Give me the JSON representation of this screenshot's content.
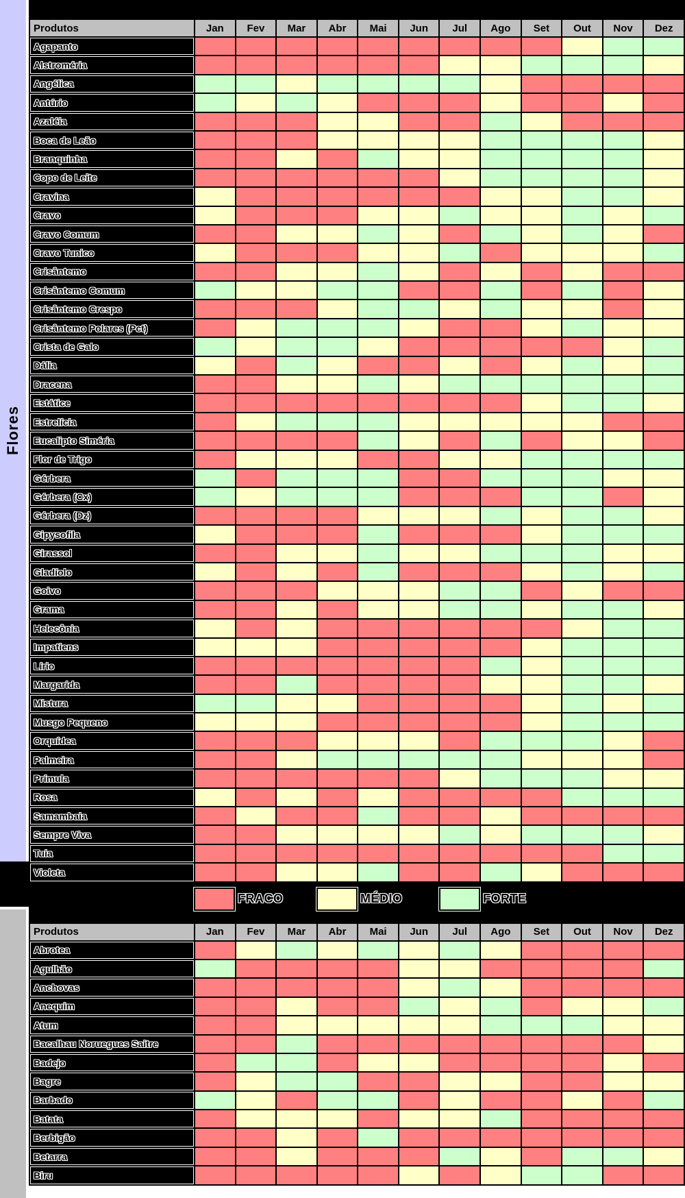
{
  "sections": {
    "first_label": "Flores",
    "second_label": ""
  },
  "ui": {
    "row_header": "Produtos",
    "legend": {
      "items": [
        {
          "code": "R",
          "label": "FRACO",
          "color": "#FF8080"
        },
        {
          "code": "Y",
          "label": "MÉDIO",
          "color": "#FFFFC8"
        },
        {
          "code": "G",
          "label": "FORTE",
          "color": "#CCFFCC"
        }
      ]
    },
    "colors": {
      "weak": "#FF8080",
      "medium": "#FFFFC8",
      "strong": "#CCFFCC",
      "header_bg": "#C0C0C0",
      "section_bar": "#CCCCFF",
      "label_bg": "#000000"
    }
  },
  "chart_data": [
    {
      "type": "heatmap",
      "section": "Flores",
      "row_header": "Produtos",
      "columns": [
        "Jan",
        "Fev",
        "Mar",
        "Abr",
        "Mai",
        "Jun",
        "Jul",
        "Ago",
        "Set",
        "Out",
        "Nov",
        "Dez"
      ],
      "value_legend": {
        "R": "FRACO",
        "Y": "MÉDIO",
        "G": "FORTE"
      },
      "rows": [
        {
          "product": "Agapanto",
          "values": "RRRRRRRRRYGG"
        },
        {
          "product": "Alstroméria",
          "values": "RRRRRRYYGGGY"
        },
        {
          "product": "Angélica",
          "values": "GGYGGGGYRRRR"
        },
        {
          "product": "Antúrio",
          "values": "GYGYRRRYRRYR"
        },
        {
          "product": "Azaléia",
          "values": "RRRYYRRGYRRR"
        },
        {
          "product": "Boca de Leão",
          "values": "RRRYYYYGGGGY"
        },
        {
          "product": "Branquinha",
          "values": "RRYRGYYGGGGY"
        },
        {
          "product": "Copo de Leite",
          "values": "RRRRRRYGGGGY"
        },
        {
          "product": "Cravina",
          "values": "YRRRRRRYYGGY"
        },
        {
          "product": "Cravo",
          "values": "YRRRYYGYYGYG"
        },
        {
          "product": "Cravo Comum",
          "values": "RRYYGYRGYGYR"
        },
        {
          "product": "Cravo Tunico",
          "values": "YRRRYYGRYYYG"
        },
        {
          "product": "Crisântemo",
          "values": "RRYYGYRYRYRR"
        },
        {
          "product": "Crisântemo Comum",
          "values": "GYYGGRRGRGRY"
        },
        {
          "product": "Crisântemo Crespo",
          "values": "RRRYGGYGYYRY"
        },
        {
          "product": "Crisântemo Polares (Pct)",
          "values": "RYGGGYRRYGYY"
        },
        {
          "product": "Crista de Galo",
          "values": "GYGGYRRRRRYG"
        },
        {
          "product": "Dália",
          "values": "YRGYRRYRYGYG"
        },
        {
          "product": "Dracena",
          "values": "RRYYGYGGGGGG"
        },
        {
          "product": "Estátice",
          "values": "RRRRRRRRYGGY"
        },
        {
          "product": "Estrelícia",
          "values": "RYGGGYYYYYRR"
        },
        {
          "product": "Eucalipto Siméria",
          "values": "RRRRGYRGRYYR"
        },
        {
          "product": "Flor de Trigo",
          "values": "RYYYRRYYGGGG"
        },
        {
          "product": "Gérbera",
          "values": "GRGGGRRGGGYY"
        },
        {
          "product": "Gérbera (Cx)",
          "values": "GYGGGRRRGGRY"
        },
        {
          "product": "Gérbera (Dz)",
          "values": "RRRRYYYGYGGY"
        },
        {
          "product": "Gipysofila",
          "values": "YRRRGRRRYGGG"
        },
        {
          "product": "Girassol",
          "values": "RRYYGYYGGGYY"
        },
        {
          "product": "Gladíolo",
          "values": "YRYRGRRRYGYG"
        },
        {
          "product": "Goivo",
          "values": "RRRYYYGGRYRR"
        },
        {
          "product": "Grama",
          "values": "RRYRYYGGYGGY"
        },
        {
          "product": "Helecônia",
          "values": "YRYRRRRRRYGG"
        },
        {
          "product": "Impatiens",
          "values": "YYYRRRRRYGGG"
        },
        {
          "product": "Lírio",
          "values": "RRRRRRRGYGGG"
        },
        {
          "product": "Margarida",
          "values": "RRGRRRRYYGGY"
        },
        {
          "product": "Mistura",
          "values": "GGYYRRRRYGYG"
        },
        {
          "product": "Musgo Pequeno",
          "values": "YYYRRRRRYGGG"
        },
        {
          "product": "Orquídea",
          "values": "RRRYYYRGGGYR"
        },
        {
          "product": "Palmeira",
          "values": "RRYGGGGGYYYR"
        },
        {
          "product": "Prímula",
          "values": "RRRRRRYGGGYY"
        },
        {
          "product": "Rosa",
          "values": "YRYRYRRRRGGG"
        },
        {
          "product": "Samambaia",
          "values": "RYRRGRRYRRRR"
        },
        {
          "product": "Sempre Viva",
          "values": "RRYYYYGYGGGY"
        },
        {
          "product": "Tuia",
          "values": "RRRRRRRRRRGG"
        },
        {
          "product": "Violeta",
          "values": "RRYYGRRGYRRR"
        }
      ]
    },
    {
      "type": "heatmap",
      "section": "",
      "row_header": "Produtos",
      "columns": [
        "Jan",
        "Fev",
        "Mar",
        "Abr",
        "Mai",
        "Jun",
        "Jul",
        "Ago",
        "Set",
        "Out",
        "Nov",
        "Dez"
      ],
      "value_legend": {
        "R": "FRACO",
        "Y": "MÉDIO",
        "G": "FORTE"
      },
      "rows": [
        {
          "product": "Abrotea",
          "values": "RYGYGYGYRRRR"
        },
        {
          "product": "Agulhão",
          "values": "GRRRRYYRRRRG"
        },
        {
          "product": "Anchovas",
          "values": "RRRRRYGYRRRR"
        },
        {
          "product": "Anequim",
          "values": "RRYRRGYGRYYG"
        },
        {
          "product": "Atum",
          "values": "RRYYYYYGGGYY"
        },
        {
          "product": "Bacalhau Noruegues Saitre",
          "values": "RRGRRRRRRRRY"
        },
        {
          "product": "Badejo",
          "values": "RGGRYYRRRRYR"
        },
        {
          "product": "Bagre",
          "values": "RYGGRRYYRRYY"
        },
        {
          "product": "Barbado",
          "values": "GYRGGRYRRYRG"
        },
        {
          "product": "Batata",
          "values": "RYYYRYYGRRRR"
        },
        {
          "product": "Berbigão",
          "values": "RRYRGRRRRRRR"
        },
        {
          "product": "Betarra",
          "values": "RRYRRRGYRGGY"
        },
        {
          "product": "Biru",
          "values": "RRRRRYRYGGRR"
        }
      ]
    }
  ]
}
